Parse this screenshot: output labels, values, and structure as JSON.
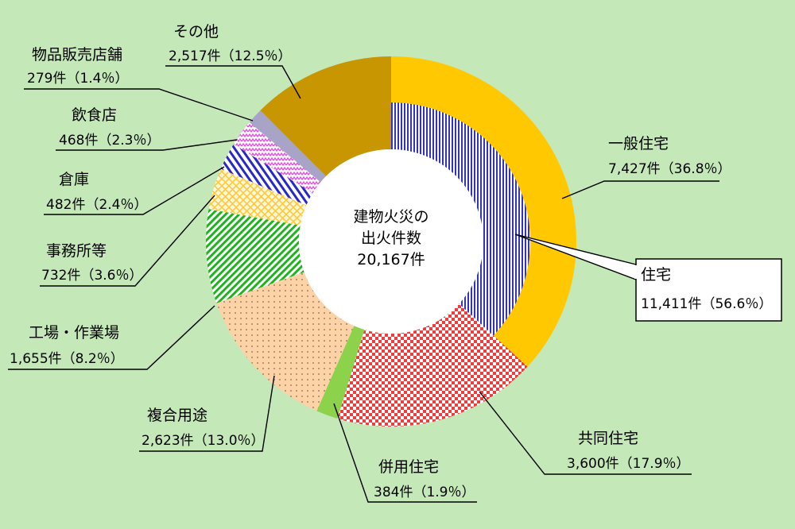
{
  "chart_data": {
    "type": "pie",
    "title": "",
    "center_label": [
      "建物火災の",
      "出火件数",
      "20,167件"
    ],
    "total": 20167,
    "outer_ring": [
      {
        "name": "一般住宅",
        "count": 7427,
        "value_label": "7,427件（36.8％）",
        "percent": 36.8,
        "color": "#ffc800"
      },
      {
        "name": "共同住宅",
        "count": 3600,
        "value_label": "3,600件（17.9％）",
        "percent": 17.9,
        "color": "#f03c3c"
      },
      {
        "name": "併用住宅",
        "count": 384,
        "value_label": "384件（1.9％）",
        "percent": 1.9,
        "color": "#8cd24b"
      },
      {
        "name": "複合用途",
        "count": 2623,
        "value_label": "2,623件（13.0％）",
        "percent": 13.0,
        "color": "#fcd2a6"
      },
      {
        "name": "工場・作業場",
        "count": 1655,
        "value_label": "1,655件（8.2％）",
        "percent": 8.2,
        "color": "#1eb41e"
      },
      {
        "name": "事務所等",
        "count": 732,
        "value_label": "732件（3.6％）",
        "percent": 3.6,
        "color": "#ffd75a"
      },
      {
        "name": "倉庫",
        "count": 482,
        "value_label": "482件（2.4％）",
        "percent": 2.4,
        "color": "#2828c8"
      },
      {
        "name": "飲食店",
        "count": 468,
        "value_label": "468件（2.3％）",
        "percent": 2.3,
        "color": "#e646e6"
      },
      {
        "name": "物品販売店舗",
        "count": 279,
        "value_label": "279件（1.4％）",
        "percent": 1.4,
        "color": "#a8a4c8"
      },
      {
        "name": "その他",
        "count": 2517,
        "value_label": "2,517件（12.5％）",
        "percent": 12.5,
        "color": "#c89600"
      }
    ],
    "inner_group": {
      "name": "住宅",
      "count": 11411,
      "value_label": "11,411件（56.6％）",
      "percent": 56.6,
      "color": "#3232c8"
    }
  }
}
